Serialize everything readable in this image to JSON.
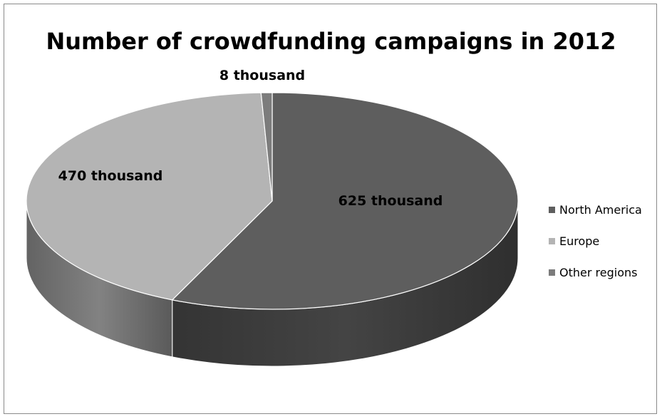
{
  "chart_data": {
    "type": "pie",
    "title": "Number of crowdfunding campaigns in 2012",
    "categories": [
      "North America",
      "Europe",
      "Other regions"
    ],
    "values": [
      625,
      470,
      8
    ],
    "data_labels": [
      "625 thousand",
      "470 thousand",
      "8 thousand"
    ],
    "colors": {
      "North America": "#5e5e5e",
      "Europe": "#b4b4b4",
      "Other regions": "#7c7c7c"
    },
    "legend_placement": "right",
    "style": "3d-pie"
  }
}
